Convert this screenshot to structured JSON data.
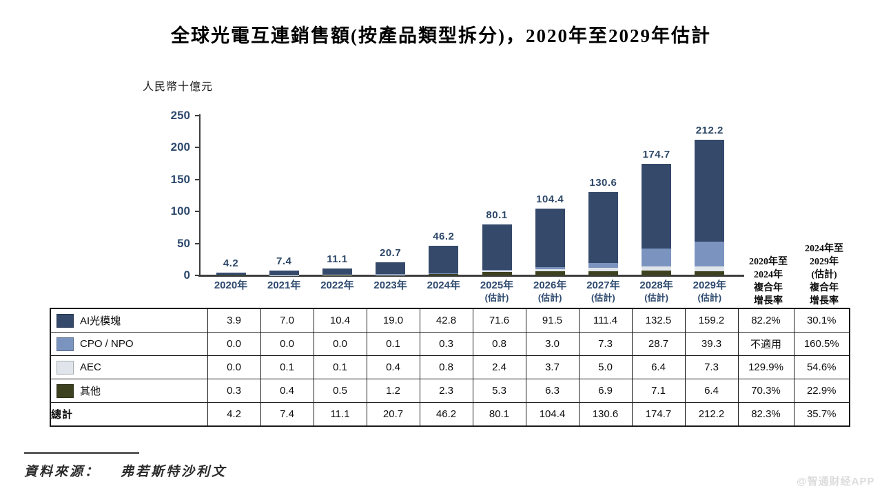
{
  "title": "全球光電互連銷售額(按產品類型拆分)，2020年至2029年估計",
  "unit_label": "人民幣十億元",
  "chart_data": {
    "type": "bar",
    "stacked": true,
    "title": "全球光電互連銷售額(按產品類型拆分)，2020年至2029年估計",
    "ylabel": "人民幣十億元",
    "ylim": [
      0,
      250
    ],
    "yticks": [
      0,
      50,
      100,
      150,
      200,
      250
    ],
    "grid": false,
    "legend_position": "table-left",
    "x_labels": [
      {
        "line1": "2020年",
        "line2": ""
      },
      {
        "line1": "2021年",
        "line2": ""
      },
      {
        "line1": "2022年",
        "line2": ""
      },
      {
        "line1": "2023年",
        "line2": ""
      },
      {
        "line1": "2024年",
        "line2": ""
      },
      {
        "line1": "2025年",
        "line2": "(估計)"
      },
      {
        "line1": "2026年",
        "line2": "(估計)"
      },
      {
        "line1": "2027年",
        "line2": "(估計)"
      },
      {
        "line1": "2028年",
        "line2": "(估計)"
      },
      {
        "line1": "2029年",
        "line2": "(估計)"
      }
    ],
    "series": [
      {
        "name": "AI光模塊",
        "color": "#35496b",
        "values": [
          3.9,
          7.0,
          10.4,
          19.0,
          42.8,
          71.6,
          91.5,
          111.4,
          132.5,
          159.2
        ]
      },
      {
        "name": "CPO / NPO",
        "color": "#7b94bf",
        "values": [
          0.0,
          0.0,
          0.0,
          0.1,
          0.3,
          0.8,
          3.0,
          7.3,
          28.7,
          39.3
        ]
      },
      {
        "name": "AEC",
        "color": "#dfe5ea",
        "values": [
          0.0,
          0.1,
          0.1,
          0.4,
          0.8,
          2.4,
          3.7,
          5.0,
          6.4,
          7.3
        ]
      },
      {
        "name": "其他",
        "color": "#3e411f",
        "values": [
          0.3,
          0.4,
          0.5,
          1.2,
          2.3,
          5.3,
          6.3,
          6.9,
          7.1,
          6.4
        ]
      }
    ],
    "stack_bottom_to_top": [
      "其他",
      "AEC",
      "CPO / NPO",
      "AI光模塊"
    ],
    "totals": [
      "4.2",
      "7.4",
      "11.1",
      "20.7",
      "46.2",
      "80.1",
      "104.4",
      "130.6",
      "174.7",
      "212.2"
    ]
  },
  "cagr_headers": [
    {
      "lines": [
        "2020年至",
        "2024年",
        "複合年",
        "增長率"
      ]
    },
    {
      "lines": [
        "2024年至",
        "2029年",
        "(估計)",
        "複合年",
        "增長率"
      ]
    }
  ],
  "table": {
    "rows": [
      {
        "label": "AI光模塊",
        "swatch": "#35496b",
        "bold": false,
        "values": [
          "3.9",
          "7.0",
          "10.4",
          "19.0",
          "42.8",
          "71.6",
          "91.5",
          "111.4",
          "132.5",
          "159.2"
        ],
        "cagr": [
          "82.2%",
          "30.1%"
        ]
      },
      {
        "label": "CPO / NPO",
        "swatch": "#7b94bf",
        "bold": false,
        "values": [
          "0.0",
          "0.0",
          "0.0",
          "0.1",
          "0.3",
          "0.8",
          "3.0",
          "7.3",
          "28.7",
          "39.3"
        ],
        "cagr": [
          "不適用",
          "160.5%"
        ]
      },
      {
        "label": "AEC",
        "swatch": "#dfe5ea",
        "bold": false,
        "values": [
          "0.0",
          "0.1",
          "0.1",
          "0.4",
          "0.8",
          "2.4",
          "3.7",
          "5.0",
          "6.4",
          "7.3"
        ],
        "cagr": [
          "129.9%",
          "54.6%"
        ]
      },
      {
        "label": "其他",
        "swatch": "#3e411f",
        "bold": false,
        "values": [
          "0.3",
          "0.4",
          "0.5",
          "1.2",
          "2.3",
          "5.3",
          "6.3",
          "6.9",
          "7.1",
          "6.4"
        ],
        "cagr": [
          "70.3%",
          "22.9%"
        ]
      },
      {
        "label": "總計",
        "swatch": null,
        "bold": true,
        "values": [
          "4.2",
          "7.4",
          "11.1",
          "20.7",
          "46.2",
          "80.1",
          "104.4",
          "130.6",
          "174.7",
          "212.2"
        ],
        "cagr": [
          "82.3%",
          "35.7%"
        ]
      }
    ]
  },
  "source": {
    "prefix": "資料來源：",
    "name": "弗若斯特沙利文"
  },
  "watermark": "@智通财经APP",
  "colors": {
    "ai_module": "#35496b",
    "cpo_npo": "#7b94bf",
    "aec": "#dfe5ea",
    "other": "#3e411f",
    "axis_text": "#2e4a6e",
    "axis_line": "#3d3d3d"
  }
}
